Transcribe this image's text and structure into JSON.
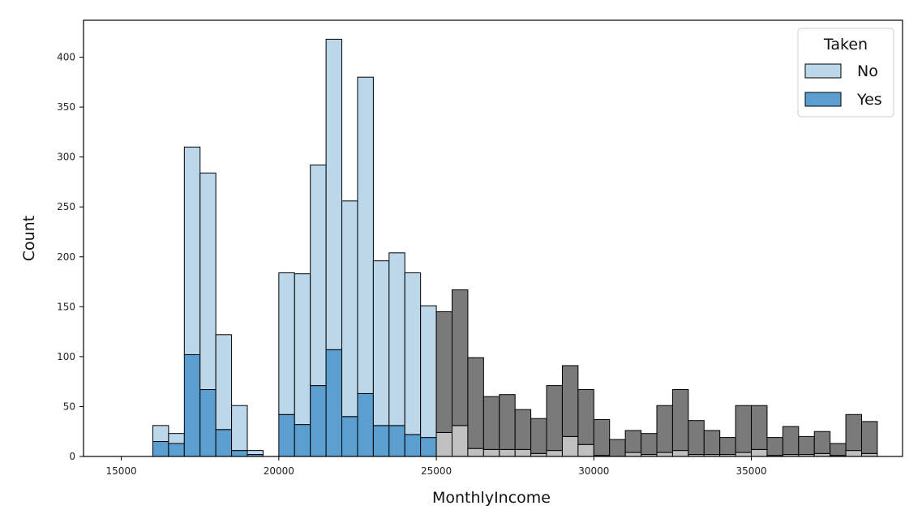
{
  "chart_data": {
    "type": "bar",
    "subtype": "stacked-histogram",
    "xlabel": "MonthlyIncome",
    "ylabel": "Count",
    "xlim": [
      13800,
      39800
    ],
    "ylim": [
      0,
      437
    ],
    "xticks": [
      15000,
      20000,
      25000,
      30000,
      35000
    ],
    "yticks": [
      0,
      50,
      100,
      150,
      200,
      250,
      300,
      350,
      400
    ],
    "bin_start": 16000,
    "bin_width": 500,
    "highlight_range": [
      16000,
      25000
    ],
    "legend": {
      "title": "Taken",
      "placement": "top-right"
    },
    "colors": {
      "No": "#bcd7ea",
      "Yes": "#5b9fd0",
      "No_muted": "#7a7a7a",
      "Yes_muted": "#c0c0c0",
      "edge": "#000000"
    },
    "series": [
      {
        "name": "No",
        "values": [
          16,
          10,
          208,
          217,
          95,
          45,
          4,
          0,
          142,
          151,
          221,
          311,
          216,
          317,
          165,
          173,
          162,
          132,
          121,
          136,
          91,
          53,
          55,
          40,
          35,
          65,
          71,
          55,
          36,
          17,
          22,
          21,
          47,
          61,
          34,
          24,
          17,
          47,
          44,
          18,
          28,
          18,
          22,
          12,
          36,
          32
        ]
      },
      {
        "name": "Yes",
        "values": [
          15,
          13,
          102,
          67,
          27,
          6,
          2,
          0,
          42,
          32,
          71,
          107,
          40,
          63,
          31,
          31,
          22,
          19,
          24,
          31,
          8,
          7,
          7,
          7,
          3,
          6,
          20,
          12,
          1,
          0,
          4,
          2,
          4,
          6,
          2,
          2,
          2,
          4,
          7,
          1,
          2,
          2,
          3,
          1,
          6,
          3
        ]
      }
    ]
  },
  "legend": {
    "title": "Taken",
    "items": [
      {
        "label": "No",
        "color": "#bcd7ea"
      },
      {
        "label": "Yes",
        "color": "#5b9fd0"
      }
    ]
  }
}
